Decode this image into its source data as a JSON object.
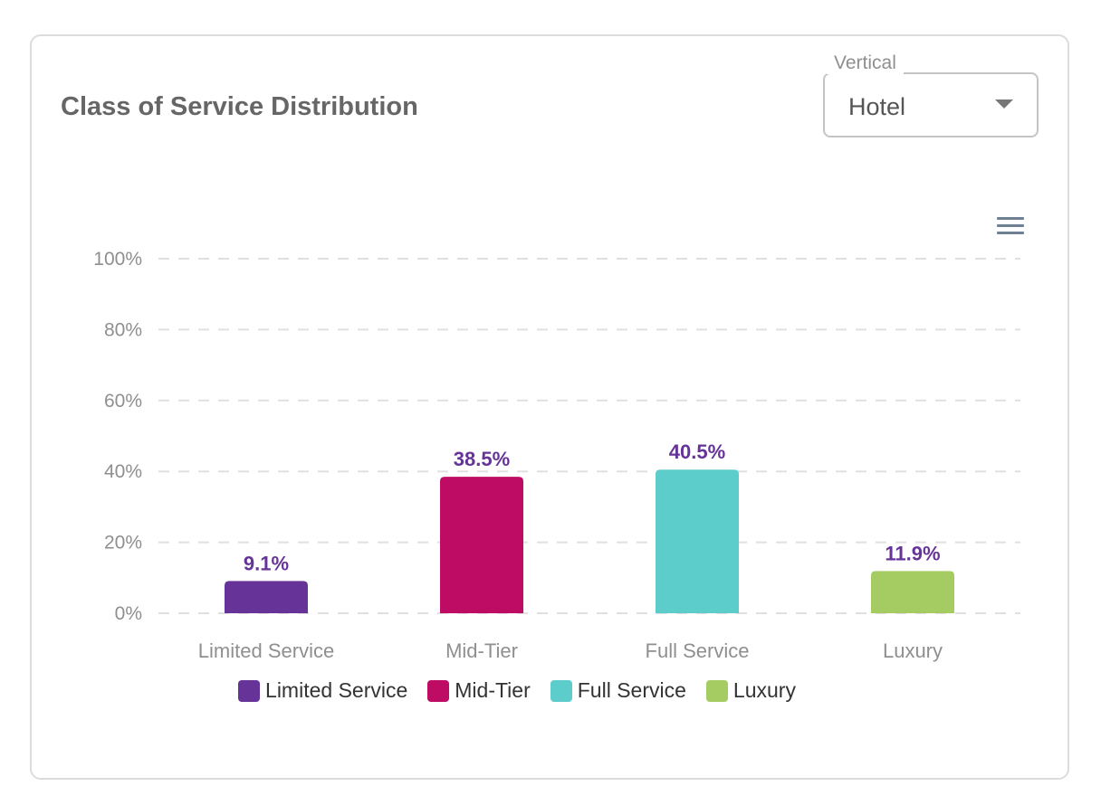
{
  "card": {
    "title": "Class of Service Distribution"
  },
  "filter": {
    "label": "Vertical",
    "value": "Hotel"
  },
  "chart_menu": {
    "icon": "hamburger-menu-icon"
  },
  "chart_data": {
    "type": "bar",
    "title": "Class of Service Distribution",
    "xlabel": "",
    "ylabel": "",
    "ylim": [
      0,
      100
    ],
    "yticks": [
      "0%",
      "20%",
      "40%",
      "60%",
      "80%",
      "100%"
    ],
    "ytick_values": [
      0,
      20,
      40,
      60,
      80,
      100
    ],
    "grid": true,
    "legend_position": "bottom",
    "categories": [
      "Limited Service",
      "Mid-Tier",
      "Full Service",
      "Luxury"
    ],
    "values": [
      9.1,
      38.5,
      40.5,
      11.9
    ],
    "data_labels": [
      "9.1%",
      "38.5%",
      "40.5%",
      "11.9%"
    ],
    "colors": [
      "#663399",
      "#be0b63",
      "#5ccdcb",
      "#a4cc62"
    ],
    "label_color": "#663399"
  }
}
